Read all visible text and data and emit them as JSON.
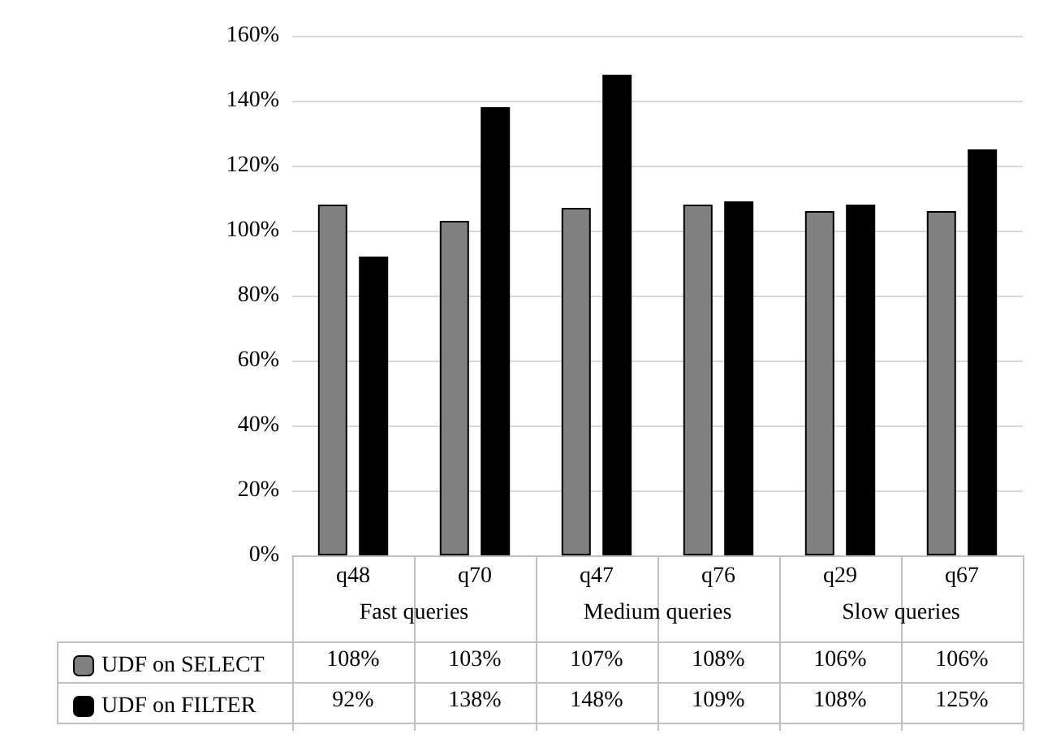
{
  "chart_data": {
    "type": "bar",
    "categories": [
      "q48",
      "q70",
      "q47",
      "q76",
      "q29",
      "q67"
    ],
    "annotations": [
      "Fast queries",
      "Medium queries",
      "Slow queries"
    ],
    "series": [
      {
        "name": "UDF on SELECT",
        "color": "#808080",
        "values": [
          108,
          103,
          107,
          108,
          106,
          106
        ],
        "value_labels": [
          "108%",
          "103%",
          "107%",
          "108%",
          "106%",
          "106%"
        ]
      },
      {
        "name": "UDF on FILTER",
        "color": "#000000",
        "values": [
          92,
          138,
          148,
          109,
          108,
          125
        ],
        "value_labels": [
          "92%",
          "138%",
          "148%",
          "109%",
          "108%",
          "125%"
        ]
      }
    ],
    "ylim": [
      0,
      160
    ],
    "yticks": [
      {
        "value": 0,
        "label": "0%"
      },
      {
        "value": 20,
        "label": "20%"
      },
      {
        "value": 40,
        "label": "40%"
      },
      {
        "value": 60,
        "label": "60%"
      },
      {
        "value": 80,
        "label": "80%"
      },
      {
        "value": 100,
        "label": "100%"
      },
      {
        "value": 120,
        "label": "120%"
      },
      {
        "value": 140,
        "label": "140%"
      },
      {
        "value": 160,
        "label": "160%"
      }
    ],
    "grid": "y",
    "legend": "bottom left"
  }
}
